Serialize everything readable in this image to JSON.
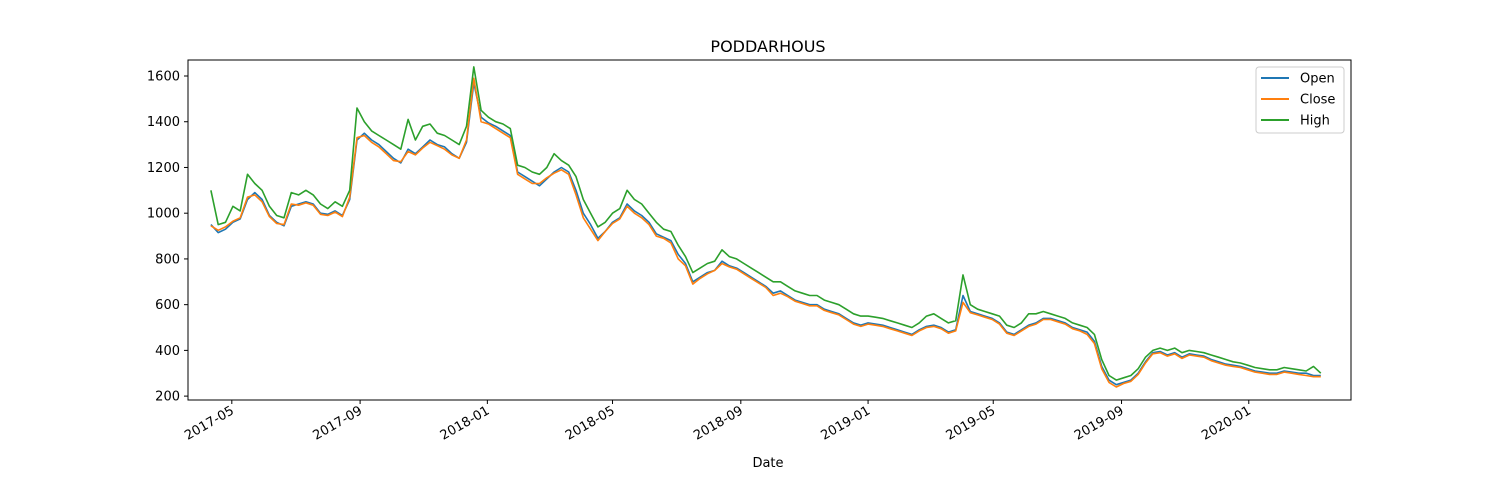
{
  "chart_data": {
    "type": "line",
    "title": "PODDARHOUS",
    "xlabel": "Date",
    "ylabel": "",
    "x_type": "date",
    "xlim": [
      "2017-03-20",
      "2020-04-08"
    ],
    "ylim": [
      183,
      1670
    ],
    "x_ticks": [
      "2017-05-01",
      "2017-09-01",
      "2018-01-01",
      "2018-05-01",
      "2018-09-01",
      "2019-01-01",
      "2019-05-01",
      "2019-09-01",
      "2020-01-01"
    ],
    "x_tick_labels": [
      "2017-05",
      "2017-09",
      "2018-01",
      "2018-05",
      "2018-09",
      "2019-01",
      "2019-05",
      "2019-09",
      "2020-01"
    ],
    "y_ticks": [
      200,
      400,
      600,
      800,
      1000,
      1200,
      1400,
      1600
    ],
    "grid": false,
    "legend_position": "top-right",
    "x": [
      "2017-04-11",
      "2017-04-18",
      "2017-04-25",
      "2017-05-02",
      "2017-05-09",
      "2017-05-16",
      "2017-05-23",
      "2017-05-30",
      "2017-06-06",
      "2017-06-13",
      "2017-06-20",
      "2017-06-27",
      "2017-07-04",
      "2017-07-11",
      "2017-07-18",
      "2017-07-25",
      "2017-08-01",
      "2017-08-08",
      "2017-08-15",
      "2017-08-22",
      "2017-08-29",
      "2017-09-05",
      "2017-09-12",
      "2017-09-19",
      "2017-09-26",
      "2017-10-03",
      "2017-10-10",
      "2017-10-17",
      "2017-10-24",
      "2017-10-31",
      "2017-11-07",
      "2017-11-14",
      "2017-11-21",
      "2017-11-28",
      "2017-12-05",
      "2017-12-12",
      "2017-12-19",
      "2017-12-26",
      "2018-01-02",
      "2018-01-09",
      "2018-01-16",
      "2018-01-23",
      "2018-01-30",
      "2018-02-06",
      "2018-02-13",
      "2018-02-20",
      "2018-02-27",
      "2018-03-06",
      "2018-03-13",
      "2018-03-20",
      "2018-03-27",
      "2018-04-03",
      "2018-04-10",
      "2018-04-17",
      "2018-04-24",
      "2018-05-01",
      "2018-05-08",
      "2018-05-15",
      "2018-05-22",
      "2018-05-29",
      "2018-06-05",
      "2018-06-12",
      "2018-06-19",
      "2018-06-26",
      "2018-07-03",
      "2018-07-10",
      "2018-07-17",
      "2018-07-24",
      "2018-07-31",
      "2018-08-07",
      "2018-08-14",
      "2018-08-21",
      "2018-08-28",
      "2018-09-04",
      "2018-09-11",
      "2018-09-18",
      "2018-09-25",
      "2018-10-02",
      "2018-10-09",
      "2018-10-16",
      "2018-10-23",
      "2018-10-30",
      "2018-11-06",
      "2018-11-13",
      "2018-11-20",
      "2018-11-27",
      "2018-12-04",
      "2018-12-11",
      "2018-12-18",
      "2018-12-25",
      "2019-01-01",
      "2019-01-08",
      "2019-01-15",
      "2019-01-22",
      "2019-01-29",
      "2019-02-05",
      "2019-02-12",
      "2019-02-19",
      "2019-02-26",
      "2019-03-05",
      "2019-03-12",
      "2019-03-19",
      "2019-03-26",
      "2019-04-02",
      "2019-04-09",
      "2019-04-16",
      "2019-04-23",
      "2019-04-30",
      "2019-05-07",
      "2019-05-14",
      "2019-05-21",
      "2019-05-28",
      "2019-06-04",
      "2019-06-11",
      "2019-06-18",
      "2019-06-25",
      "2019-07-02",
      "2019-07-09",
      "2019-07-16",
      "2019-07-23",
      "2019-07-30",
      "2019-08-06",
      "2019-08-13",
      "2019-08-20",
      "2019-08-27",
      "2019-09-03",
      "2019-09-10",
      "2019-09-17",
      "2019-09-24",
      "2019-10-01",
      "2019-10-08",
      "2019-10-15",
      "2019-10-22",
      "2019-10-29",
      "2019-11-05",
      "2019-11-12",
      "2019-11-19",
      "2019-11-26",
      "2019-12-03",
      "2019-12-10",
      "2019-12-17",
      "2019-12-24",
      "2019-12-31",
      "2020-01-07",
      "2020-01-14",
      "2020-01-21",
      "2020-01-28",
      "2020-02-04",
      "2020-02-11",
      "2020-02-18",
      "2020-02-25",
      "2020-03-03",
      "2020-03-10"
    ],
    "series": [
      {
        "name": "Open",
        "color": "#1f77b4",
        "values": [
          950,
          915,
          930,
          960,
          975,
          1060,
          1090,
          1060,
          990,
          960,
          945,
          1030,
          1040,
          1050,
          1040,
          1000,
          995,
          1010,
          990,
          1060,
          1320,
          1350,
          1320,
          1300,
          1270,
          1240,
          1220,
          1280,
          1260,
          1290,
          1320,
          1300,
          1290,
          1260,
          1240,
          1310,
          1570,
          1420,
          1395,
          1380,
          1360,
          1340,
          1180,
          1160,
          1140,
          1120,
          1150,
          1180,
          1200,
          1180,
          1100,
          1000,
          950,
          890,
          920,
          960,
          980,
          1040,
          1010,
          990,
          960,
          910,
          895,
          880,
          820,
          780,
          700,
          720,
          740,
          750,
          790,
          770,
          760,
          740,
          720,
          700,
          680,
          650,
          660,
          640,
          620,
          610,
          600,
          600,
          580,
          570,
          560,
          540,
          520,
          510,
          520,
          515,
          510,
          500,
          490,
          480,
          470,
          490,
          505,
          510,
          500,
          480,
          490,
          640,
          570,
          560,
          550,
          540,
          520,
          480,
          470,
          490,
          510,
          520,
          540,
          540,
          530,
          520,
          500,
          490,
          480,
          440,
          330,
          270,
          250,
          260,
          270,
          300,
          350,
          390,
          395,
          380,
          390,
          370,
          385,
          380,
          375,
          360,
          350,
          340,
          335,
          330,
          320,
          310,
          305,
          300,
          300,
          310,
          305,
          300,
          300,
          290,
          290
        ]
      },
      {
        "name": "Close",
        "color": "#ff7f0e",
        "values": [
          945,
          925,
          940,
          965,
          980,
          1070,
          1080,
          1050,
          985,
          955,
          950,
          1040,
          1035,
          1045,
          1035,
          995,
          990,
          1005,
          985,
          1070,
          1330,
          1340,
          1310,
          1290,
          1260,
          1230,
          1225,
          1270,
          1255,
          1285,
          1310,
          1295,
          1280,
          1255,
          1240,
          1320,
          1590,
          1400,
          1390,
          1370,
          1350,
          1330,
          1170,
          1150,
          1130,
          1130,
          1155,
          1175,
          1190,
          1170,
          1080,
          980,
          930,
          880,
          920,
          955,
          975,
          1030,
          1000,
          980,
          950,
          900,
          890,
          870,
          800,
          770,
          690,
          715,
          735,
          750,
          780,
          765,
          755,
          735,
          715,
          695,
          675,
          640,
          650,
          635,
          615,
          605,
          595,
          595,
          575,
          565,
          555,
          535,
          515,
          505,
          515,
          510,
          505,
          495,
          485,
          475,
          465,
          485,
          500,
          505,
          495,
          475,
          485,
          610,
          565,
          555,
          545,
          535,
          515,
          475,
          465,
          485,
          505,
          515,
          535,
          535,
          525,
          515,
          495,
          485,
          470,
          430,
          320,
          260,
          240,
          255,
          265,
          295,
          345,
          385,
          390,
          375,
          385,
          365,
          380,
          375,
          370,
          355,
          345,
          335,
          330,
          325,
          315,
          305,
          300,
          295,
          295,
          305,
          300,
          295,
          290,
          285,
          285
        ]
      },
      {
        "name": "High",
        "color": "#2ca02c",
        "values": [
          1100,
          950,
          960,
          1030,
          1010,
          1170,
          1130,
          1100,
          1030,
          990,
          980,
          1090,
          1080,
          1100,
          1080,
          1040,
          1020,
          1050,
          1030,
          1100,
          1460,
          1400,
          1360,
          1340,
          1320,
          1300,
          1280,
          1410,
          1320,
          1380,
          1390,
          1350,
          1340,
          1320,
          1300,
          1380,
          1640,
          1450,
          1420,
          1400,
          1390,
          1370,
          1210,
          1200,
          1180,
          1170,
          1200,
          1260,
          1230,
          1210,
          1160,
          1060,
          1000,
          940,
          960,
          1000,
          1020,
          1100,
          1060,
          1040,
          1000,
          960,
          930,
          920,
          860,
          810,
          740,
          760,
          780,
          790,
          840,
          810,
          800,
          780,
          760,
          740,
          720,
          700,
          700,
          680,
          660,
          650,
          640,
          640,
          620,
          610,
          600,
          580,
          560,
          550,
          550,
          545,
          540,
          530,
          520,
          510,
          500,
          520,
          550,
          560,
          540,
          520,
          530,
          730,
          600,
          580,
          570,
          560,
          550,
          510,
          500,
          520,
          560,
          560,
          570,
          560,
          550,
          540,
          520,
          510,
          500,
          470,
          360,
          290,
          270,
          280,
          290,
          320,
          370,
          400,
          410,
          400,
          410,
          390,
          400,
          395,
          390,
          380,
          370,
          360,
          350,
          345,
          335,
          325,
          320,
          315,
          315,
          325,
          320,
          315,
          310,
          330,
          300
        ]
      }
    ]
  }
}
